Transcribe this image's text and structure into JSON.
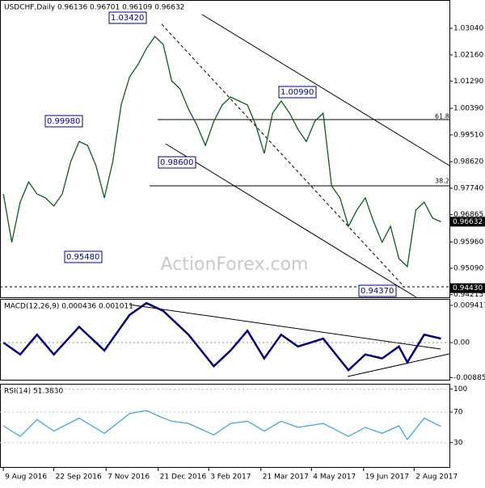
{
  "chart_data": [
    {
      "type": "line",
      "title": "USDCHF,Daily  0.96136 0.96701 0.96109 0.96632",
      "x": [
        0,
        5,
        10,
        15,
        20,
        25,
        30,
        35,
        40,
        45,
        50,
        55,
        60,
        65,
        70,
        75,
        80,
        85,
        90,
        95,
        100,
        105,
        110,
        115,
        120,
        125,
        130,
        135,
        140,
        145,
        150,
        155,
        160,
        165,
        170,
        175,
        180,
        185,
        190,
        195,
        200,
        205,
        210,
        215,
        220,
        225,
        230,
        235,
        240,
        245,
        250,
        255,
        260
      ],
      "series": [
        {
          "name": "USDCHF",
          "color": "#0b5d1e",
          "values": [
            0.9755,
            0.9595,
            0.9728,
            0.9795,
            0.9755,
            0.9742,
            0.9715,
            0.9755,
            0.9862,
            0.9929,
            0.9916,
            0.9849,
            0.9742,
            0.9862,
            1.005,
            1.0143,
            1.0184,
            1.0237,
            1.0277,
            1.025,
            1.013,
            1.0103,
            1.0036,
            0.9983,
            0.9916,
            0.9996,
            1.005,
            1.0076,
            1.0063,
            1.005,
            0.9983,
            0.9889,
            1.0023,
            1.0063,
            1.0023,
            0.9969,
            0.9929,
            0.9996,
            1.0023,
            0.9782,
            0.9742,
            0.9648,
            0.9702,
            0.9742,
            0.9662,
            0.9595,
            0.9648,
            0.9541,
            0.9514,
            0.9702,
            0.9728,
            0.9675,
            0.9663
          ]
        }
      ],
      "xlim": [
        -2,
        265
      ],
      "xticks": [
        {
          "value": 0,
          "label": "9 Aug 2016"
        },
        {
          "value": 30,
          "label": "22 Sep 2016"
        },
        {
          "value": 61,
          "label": "7 Nov 2016"
        },
        {
          "value": 92,
          "label": "21 Dec 2016"
        },
        {
          "value": 122,
          "label": "3 Feb 2017"
        },
        {
          "value": 153,
          "label": "21 Mar 2017"
        },
        {
          "value": 183,
          "label": "4 May 2017"
        },
        {
          "value": 214,
          "label": "19 Jun 2017"
        },
        {
          "value": 244,
          "label": "2 Aug 2017"
        }
      ],
      "ylim": [
        0.94126,
        1.03977
      ],
      "yticks": [
        {
          "value": 1.0304,
          "label": "1.03040"
        },
        {
          "value": 1.0216,
          "label": "1.02160"
        },
        {
          "value": 1.0129,
          "label": "1.01290"
        },
        {
          "value": 1.0039,
          "label": "1.00390"
        },
        {
          "value": 0.9951,
          "label": "0.99510"
        },
        {
          "value": 0.9862,
          "label": "0.98620"
        },
        {
          "value": 0.9774,
          "label": "0.97740"
        },
        {
          "value": 0.96865,
          "label": "0.96865"
        },
        {
          "value": 0.9596,
          "label": "0.95960"
        },
        {
          "value": 0.9509,
          "label": "0.95090"
        },
        {
          "value": 0.94215,
          "label": "0.94215"
        }
      ],
      "price_labels": [
        {
          "value": 0.96632,
          "label": "0.96632"
        },
        {
          "value": 0.9443,
          "label": "0.94430"
        }
      ],
      "annotations": [
        "1.03420",
        "1.00990",
        "0.99980",
        "0.98600",
        "0.95480",
        "0.94370",
        "61.8",
        "38.2"
      ],
      "watermark": "ActionForex.com"
    },
    {
      "type": "line",
      "title": "MACD(12,26,9) 0.000436 0.001011",
      "x": [
        0,
        10,
        20,
        30,
        45,
        60,
        75,
        85,
        95,
        100,
        110,
        125,
        135,
        145,
        155,
        165,
        175,
        190,
        205,
        215,
        225,
        235,
        240,
        250,
        260
      ],
      "series": [
        {
          "name": "MACD",
          "color": "#000080",
          "values": [
            0,
            -0.003,
            0.002,
            -0.003,
            0.004,
            -0.002,
            0.007,
            0.01,
            0.008,
            0.006,
            0.002,
            -0.006,
            -0.002,
            0.003,
            -0.004,
            0.002,
            -0.001,
            0.001,
            -0.007,
            -0.003,
            -0.004,
            -0.001,
            -0.005,
            0.002,
            0.001
          ]
        }
      ],
      "ylim": [
        -0.00941,
        0.01105
      ],
      "yticks": [
        {
          "value": 0.009411,
          "label": "0.009411"
        },
        {
          "value": 0,
          "label": "0.00"
        },
        {
          "value": -0.008852,
          "label": "-0.008852"
        }
      ]
    },
    {
      "type": "line",
      "title": "RSI(14) 51.3830",
      "x": [
        0,
        10,
        20,
        30,
        45,
        60,
        75,
        85,
        95,
        100,
        110,
        125,
        135,
        145,
        155,
        165,
        175,
        190,
        205,
        215,
        225,
        235,
        240,
        250,
        260
      ],
      "series": [
        {
          "name": "RSI",
          "color": "#3fa9d8",
          "values": [
            52,
            38,
            60,
            45,
            62,
            42,
            68,
            72,
            62,
            58,
            55,
            40,
            55,
            58,
            45,
            58,
            50,
            55,
            38,
            50,
            42,
            52,
            34,
            62,
            51
          ]
        }
      ],
      "ylim": [
        -2,
        107
      ],
      "yticks": [
        100,
        70,
        30
      ]
    }
  ]
}
